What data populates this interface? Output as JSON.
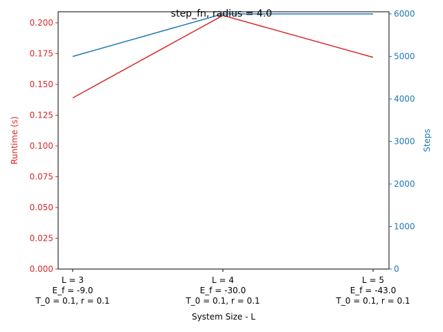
{
  "chart_data": {
    "type": "line",
    "title": "step_fn, radius = 4.0",
    "xlabel": "System Size - L",
    "ylabel_left": "Runtime (s)",
    "ylabel_right": "Steps",
    "categories": [
      [
        "L = 3",
        "E_f = -9.0",
        "T_0 = 0.1, r = 0.1"
      ],
      [
        "L = 4",
        "E_f = -30.0",
        "T_0 = 0.1, r = 0.1"
      ],
      [
        "L = 5",
        "E_f = -43.0",
        "T_0 = 0.1, r = 0.1"
      ]
    ],
    "series": [
      {
        "name": "Runtime (s)",
        "axis": "left",
        "color": "#d62728",
        "values": [
          0.139,
          0.206,
          0.172
        ]
      },
      {
        "name": "Steps",
        "axis": "right",
        "color": "#1f77b4",
        "values": [
          5000,
          6000,
          6000
        ]
      }
    ],
    "ylim_left": [
      0,
      0.209
    ],
    "yticks_left": [
      "0.000",
      "0.025",
      "0.050",
      "0.075",
      "0.100",
      "0.125",
      "0.150",
      "0.175",
      "0.200"
    ],
    "ylim_right": [
      0,
      6050
    ],
    "yticks_right": [
      "0",
      "1000",
      "2000",
      "3000",
      "4000",
      "5000",
      "6000"
    ],
    "left_axis_color": "#d62728",
    "right_axis_color": "#1f77b4",
    "grid": false,
    "legend": "none"
  }
}
